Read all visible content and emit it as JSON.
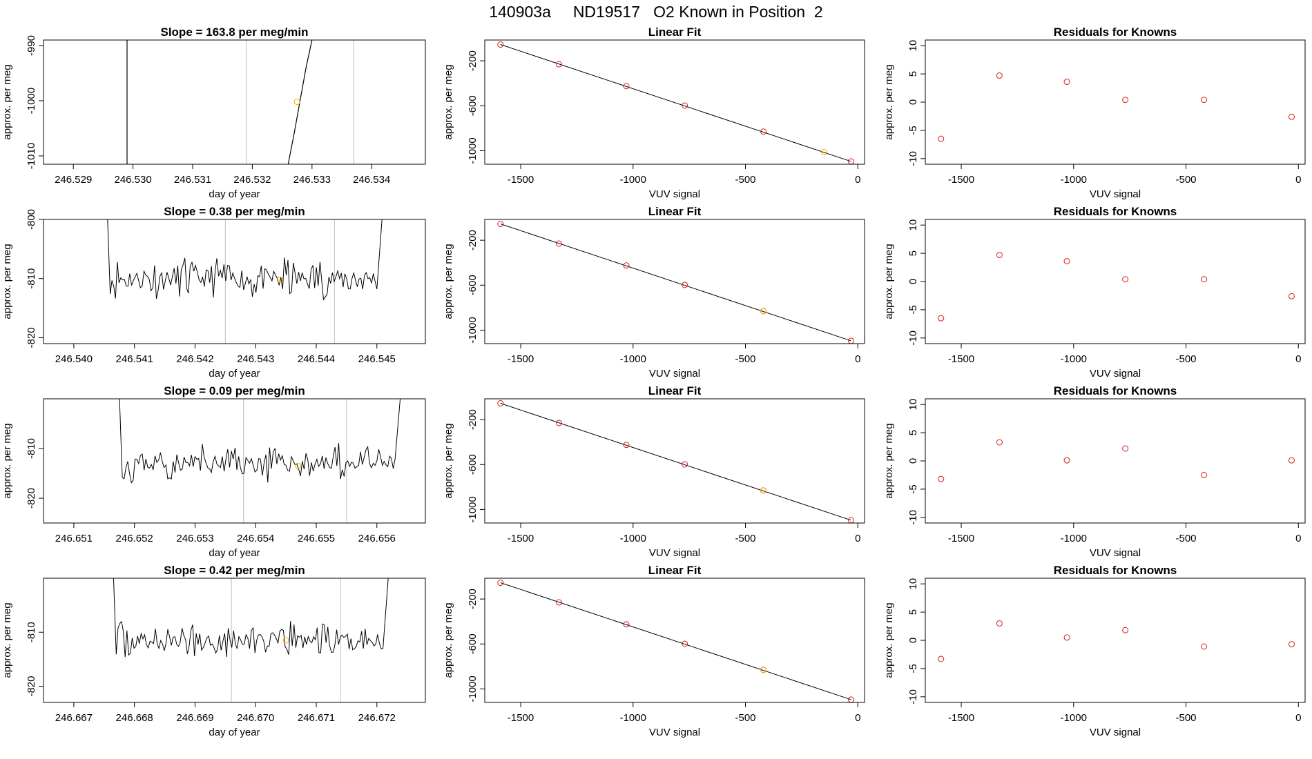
{
  "page": {
    "title": "140903a     ND19517   O2 Known in Position  2"
  },
  "colors": {
    "line": "#000000",
    "gridline": "#bebebe",
    "known_point": "#d8191c",
    "sample_point": "#f5a800"
  },
  "chart_data": [
    {
      "id": "r1-trace",
      "type": "line",
      "title": "Slope =  163.8  per meg/min",
      "xlabel": "day of year",
      "ylabel": "approx. per meg",
      "xlim": [
        246.5285,
        246.5349
      ],
      "ylim": [
        -1011.5,
        -989.0
      ],
      "xticks": [
        246.529,
        246.53,
        246.531,
        246.532,
        246.533,
        246.534
      ],
      "xtick_labels": [
        "246.529",
        "246.530",
        "246.531",
        "246.532",
        "246.533",
        "246.534"
      ],
      "yticks": [
        -990,
        -1000,
        -1010
      ],
      "ytick_labels": [
        "-990",
        "-1000",
        "-1010"
      ],
      "vlines": [
        246.5319,
        246.5337
      ],
      "series": [
        {
          "points": [
            [
              246.5299,
              -1011.5
            ],
            [
              246.5299,
              -989.0
            ]
          ]
        },
        {
          "points": [
            [
              246.5326,
              -1011.5
            ],
            [
              246.5327,
              -1006
            ],
            [
              246.5329,
              -994
            ],
            [
              246.533,
              -989.0
            ]
          ]
        }
      ],
      "marker": {
        "x": 246.53275,
        "y": -1000.2
      }
    },
    {
      "id": "r1-fit",
      "type": "scatter",
      "title": "Linear Fit",
      "xlabel": "VUV signal",
      "ylabel": "approx. per meg",
      "xlim": [
        -1660,
        30
      ],
      "ylim": [
        -1120,
        -15
      ],
      "xticks": [
        -1500,
        -1000,
        -500,
        0
      ],
      "xtick_labels": [
        "-1500",
        "-1000",
        "-500",
        "0"
      ],
      "yticks": [
        -200,
        -600,
        -1000
      ],
      "ytick_labels": [
        "-200",
        "-600",
        "-1000"
      ],
      "fit_line": [
        [
          -1590,
          -55
        ],
        [
          -30,
          -1095
        ]
      ],
      "points": [
        [
          -1590,
          -55
        ],
        [
          -1330,
          -230
        ],
        [
          -1030,
          -425
        ],
        [
          -770,
          -598
        ],
        [
          -420,
          -830
        ],
        [
          -30,
          -1095
        ]
      ],
      "highlight": {
        "x": -150,
        "y": -1012
      }
    },
    {
      "id": "r1-resid",
      "type": "scatter",
      "title": "Residuals for Knowns",
      "xlabel": "VUV signal",
      "ylabel": "approx. per meg",
      "xlim": [
        -1660,
        30
      ],
      "ylim": [
        -11,
        11
      ],
      "xticks": [
        -1500,
        -1000,
        -500,
        0
      ],
      "xtick_labels": [
        "-1500",
        "-1000",
        "-500",
        "0"
      ],
      "yticks": [
        10,
        5,
        0,
        -5,
        -10
      ],
      "ytick_labels": [
        "10",
        "5",
        "0",
        "-5",
        "-10"
      ],
      "points": [
        [
          -1590,
          -6.5
        ],
        [
          -1330,
          4.7
        ],
        [
          -1030,
          3.6
        ],
        [
          -770,
          0.4
        ],
        [
          -420,
          0.4
        ],
        [
          -30,
          -2.6
        ]
      ]
    },
    {
      "id": "r2-trace",
      "type": "line",
      "title": "Slope =  0.38  per meg/min",
      "xlabel": "day of year",
      "ylabel": "approx. per meg",
      "xlim": [
        246.5395,
        246.5458
      ],
      "ylim": [
        -821,
        -800
      ],
      "xticks": [
        246.54,
        246.541,
        246.542,
        246.543,
        246.544,
        246.545
      ],
      "xtick_labels": [
        "246.540",
        "246.541",
        "246.542",
        "246.543",
        "246.544",
        "246.545"
      ],
      "yticks": [
        -800,
        -810,
        -820
      ],
      "ytick_labels": [
        "-800",
        "-810",
        "-820"
      ],
      "vlines": [
        246.5425,
        246.5443
      ],
      "noise": {
        "start": 246.5406,
        "end": 246.545,
        "mean": -810,
        "amp": 2.6,
        "seed": 11
      },
      "marker": {
        "x": 246.5434,
        "y": -810.2
      }
    },
    {
      "id": "r2-fit",
      "type": "scatter",
      "title": "Linear Fit",
      "xlabel": "VUV signal",
      "ylabel": "approx. per meg",
      "xlim": [
        -1660,
        30
      ],
      "ylim": [
        -1120,
        -15
      ],
      "xticks": [
        -1500,
        -1000,
        -500,
        0
      ],
      "xtick_labels": [
        "-1500",
        "-1000",
        "-500",
        "0"
      ],
      "yticks": [
        -200,
        -600,
        -1000
      ],
      "ytick_labels": [
        "-200",
        "-600",
        "-1000"
      ],
      "fit_line": [
        [
          -1590,
          -55
        ],
        [
          -30,
          -1095
        ]
      ],
      "points": [
        [
          -1590,
          -55
        ],
        [
          -1330,
          -230
        ],
        [
          -1030,
          -425
        ],
        [
          -770,
          -598
        ],
        [
          -420,
          -830
        ],
        [
          -30,
          -1095
        ]
      ],
      "highlight": {
        "x": -420,
        "y": -830
      }
    },
    {
      "id": "r2-resid",
      "type": "scatter",
      "title": "Residuals for Knowns",
      "xlabel": "VUV signal",
      "ylabel": "approx. per meg",
      "xlim": [
        -1660,
        30
      ],
      "ylim": [
        -11,
        11
      ],
      "xticks": [
        -1500,
        -1000,
        -500,
        0
      ],
      "xtick_labels": [
        "-1500",
        "-1000",
        "-500",
        "0"
      ],
      "yticks": [
        10,
        5,
        0,
        -5,
        -10
      ],
      "ytick_labels": [
        "10",
        "5",
        "0",
        "-5",
        "-10"
      ],
      "points": [
        [
          -1590,
          -6.5
        ],
        [
          -1330,
          4.7
        ],
        [
          -1030,
          3.6
        ],
        [
          -770,
          0.4
        ],
        [
          -420,
          0.4
        ],
        [
          -30,
          -2.6
        ]
      ]
    },
    {
      "id": "r3-trace",
      "type": "line",
      "title": "Slope =  0.09  per meg/min",
      "xlabel": "day of year",
      "ylabel": "approx. per meg",
      "xlim": [
        246.6505,
        246.6568
      ],
      "ylim": [
        -825,
        -800
      ],
      "xticks": [
        246.651,
        246.652,
        246.653,
        246.654,
        246.655,
        246.656
      ],
      "xtick_labels": [
        "246.651",
        "246.652",
        "246.653",
        "246.654",
        "246.655",
        "246.656"
      ],
      "yticks": [
        -810,
        -820
      ],
      "ytick_labels": [
        "-810",
        "-820"
      ],
      "vlines": [
        246.6538,
        246.6555
      ],
      "noise": {
        "start": 246.6518,
        "end": 246.6563,
        "mean": -813,
        "amp": 2.8,
        "seed": 23
      },
      "marker": {
        "x": 246.6547,
        "y": -813.5
      }
    },
    {
      "id": "r3-fit",
      "type": "scatter",
      "title": "Linear Fit",
      "xlabel": "VUV signal",
      "ylabel": "approx. per meg",
      "xlim": [
        -1660,
        30
      ],
      "ylim": [
        -1120,
        -15
      ],
      "xticks": [
        -1500,
        -1000,
        -500,
        0
      ],
      "xtick_labels": [
        "-1500",
        "-1000",
        "-500",
        "0"
      ],
      "yticks": [
        -200,
        -600,
        -1000
      ],
      "ytick_labels": [
        "-200",
        "-600",
        "-1000"
      ],
      "fit_line": [
        [
          -1590,
          -55
        ],
        [
          -30,
          -1095
        ]
      ],
      "points": [
        [
          -1590,
          -55
        ],
        [
          -1330,
          -230
        ],
        [
          -1030,
          -425
        ],
        [
          -770,
          -598
        ],
        [
          -420,
          -830
        ],
        [
          -30,
          -1095
        ]
      ],
      "highlight": {
        "x": -420,
        "y": -830
      }
    },
    {
      "id": "r3-resid",
      "type": "scatter",
      "title": "Residuals for Knowns",
      "xlabel": "VUV signal",
      "ylabel": "approx. per meg",
      "xlim": [
        -1660,
        30
      ],
      "ylim": [
        -11,
        11
      ],
      "xticks": [
        -1500,
        -1000,
        -500,
        0
      ],
      "xtick_labels": [
        "-1500",
        "-1000",
        "-500",
        "0"
      ],
      "yticks": [
        10,
        5,
        0,
        -5,
        -10
      ],
      "ytick_labels": [
        "10",
        "5",
        "0",
        "-5",
        "-10"
      ],
      "points": [
        [
          -1590,
          -3.2
        ],
        [
          -1330,
          3.3
        ],
        [
          -1030,
          0.1
        ],
        [
          -770,
          2.2
        ],
        [
          -420,
          -2.5
        ],
        [
          -30,
          0.1
        ]
      ]
    },
    {
      "id": "r4-trace",
      "type": "line",
      "title": "Slope =  0.42  per meg/min",
      "xlabel": "day of year",
      "ylabel": "approx. per meg",
      "xlim": [
        246.6665,
        246.6728
      ],
      "ylim": [
        -823,
        -800
      ],
      "xticks": [
        246.667,
        246.668,
        246.669,
        246.67,
        246.671,
        246.672
      ],
      "xtick_labels": [
        "246.667",
        "246.668",
        "246.669",
        "246.670",
        "246.671",
        "246.672"
      ],
      "yticks": [
        -810,
        -820
      ],
      "ytick_labels": [
        "-810",
        "-820"
      ],
      "vlines": [
        246.6696,
        246.6714
      ],
      "noise": {
        "start": 246.6677,
        "end": 246.6721,
        "mean": -811.5,
        "amp": 2.6,
        "seed": 37
      },
      "marker": {
        "x": 246.6705,
        "y": -811.5
      }
    },
    {
      "id": "r4-fit",
      "type": "scatter",
      "title": "Linear Fit",
      "xlabel": "VUV signal",
      "ylabel": "approx. per meg",
      "xlim": [
        -1660,
        30
      ],
      "ylim": [
        -1120,
        -15
      ],
      "xticks": [
        -1500,
        -1000,
        -500,
        0
      ],
      "xtick_labels": [
        "-1500",
        "-1000",
        "-500",
        "0"
      ],
      "yticks": [
        -200,
        -600,
        -1000
      ],
      "ytick_labels": [
        "-200",
        "-600",
        "-1000"
      ],
      "fit_line": [
        [
          -1590,
          -55
        ],
        [
          -30,
          -1095
        ]
      ],
      "points": [
        [
          -1590,
          -55
        ],
        [
          -1330,
          -230
        ],
        [
          -1030,
          -425
        ],
        [
          -770,
          -598
        ],
        [
          -420,
          -830
        ],
        [
          -30,
          -1095
        ]
      ],
      "highlight": {
        "x": -420,
        "y": -830
      }
    },
    {
      "id": "r4-resid",
      "type": "scatter",
      "title": "Residuals for Knowns",
      "xlabel": "VUV signal",
      "ylabel": "approx. per meg",
      "xlim": [
        -1660,
        30
      ],
      "ylim": [
        -11,
        11
      ],
      "xticks": [
        -1500,
        -1000,
        -500,
        0
      ],
      "xtick_labels": [
        "-1500",
        "-1000",
        "-500",
        "0"
      ],
      "yticks": [
        10,
        5,
        0,
        -5,
        -10
      ],
      "ytick_labels": [
        "10",
        "5",
        "0",
        "-5",
        "-10"
      ],
      "points": [
        [
          -1590,
          -3.3
        ],
        [
          -1330,
          3.0
        ],
        [
          -1030,
          0.5
        ],
        [
          -770,
          1.8
        ],
        [
          -420,
          -1.1
        ],
        [
          -30,
          -0.7
        ]
      ]
    }
  ]
}
